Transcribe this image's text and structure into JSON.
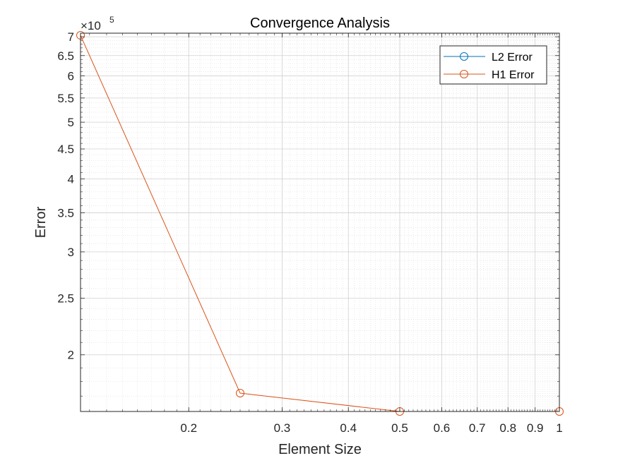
{
  "chart_data": {
    "type": "line",
    "title": "Convergence Analysis",
    "xlabel": "Element Size",
    "ylabel": "Error",
    "xscale": "log",
    "yscale": "log",
    "xlim": [
      0.125,
      1
    ],
    "ylim": [
      160000,
      710000
    ],
    "grid": true,
    "minor_grid": true,
    "legend_position": "top-right",
    "y_multiplier_label": "×10",
    "y_multiplier_exponent": "5",
    "x_ticks": [
      {
        "value": 0.2,
        "label": "0.2"
      },
      {
        "value": 0.3,
        "label": "0.3"
      },
      {
        "value": 0.4,
        "label": "0.4"
      },
      {
        "value": 0.5,
        "label": "0.5"
      },
      {
        "value": 0.6,
        "label": "0.6"
      },
      {
        "value": 0.7,
        "label": "0.7"
      },
      {
        "value": 0.8,
        "label": "0.8"
      },
      {
        "value": 0.9,
        "label": "0.9"
      },
      {
        "value": 1,
        "label": "1"
      }
    ],
    "y_ticks": [
      {
        "value": 200000,
        "label": "2"
      },
      {
        "value": 250000,
        "label": "2.5"
      },
      {
        "value": 300000,
        "label": "3"
      },
      {
        "value": 350000,
        "label": "3.5"
      },
      {
        "value": 400000,
        "label": "4"
      },
      {
        "value": 450000,
        "label": "4.5"
      },
      {
        "value": 500000,
        "label": "5"
      },
      {
        "value": 550000,
        "label": "5.5"
      },
      {
        "value": 600000,
        "label": "6"
      },
      {
        "value": 650000,
        "label": "6.5"
      },
      {
        "value": 700000,
        "label": "7"
      }
    ],
    "series": [
      {
        "name": "L2 Error",
        "color": "#0072BD",
        "marker": "circle",
        "x": [],
        "y": []
      },
      {
        "name": "H1 Error",
        "color": "#D95319",
        "marker": "circle",
        "x": [
          0.125,
          0.25,
          0.5,
          1
        ],
        "y": [
          704000,
          172000,
          160000,
          160000
        ]
      }
    ]
  }
}
